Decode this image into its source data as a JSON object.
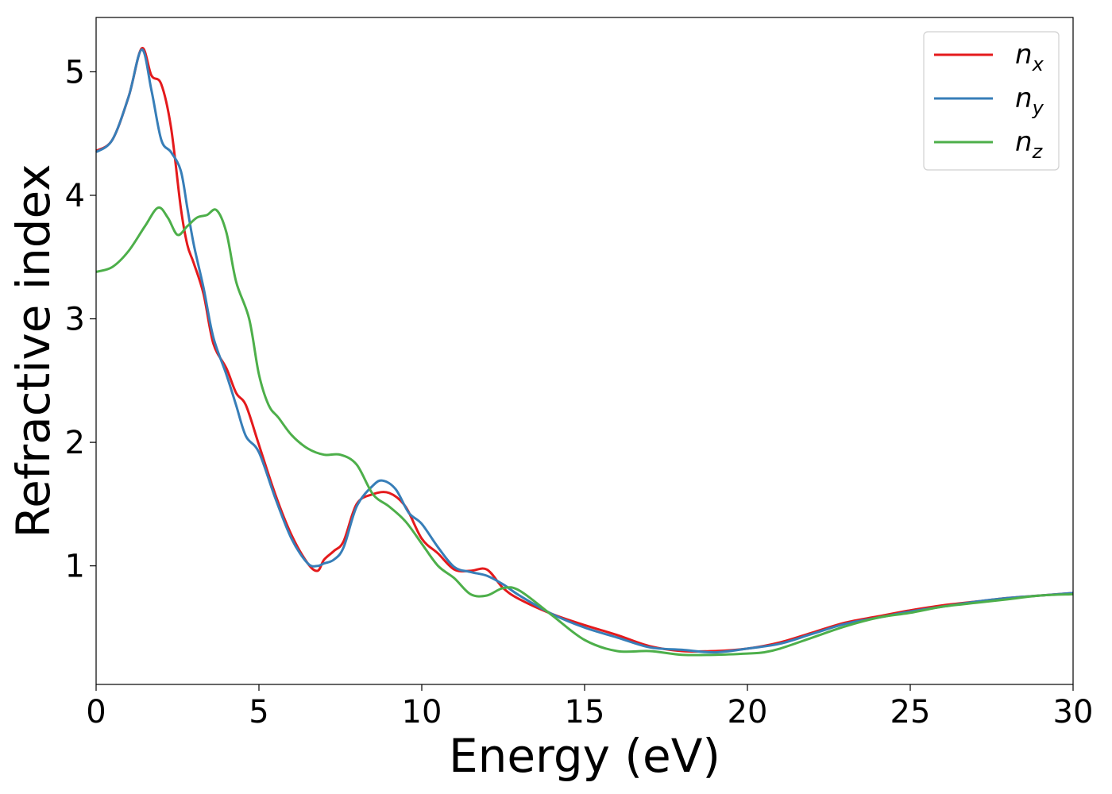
{
  "chart_data": {
    "type": "line",
    "xlabel": "Energy (eV)",
    "ylabel": "Refractive index",
    "xlim": [
      0,
      30
    ],
    "ylim": [
      0.04,
      5.44
    ],
    "xticks": [
      0,
      5,
      10,
      15,
      20,
      25,
      30
    ],
    "xtick_labels": [
      "0",
      "5",
      "10",
      "15",
      "20",
      "25",
      "30"
    ],
    "yticks": [
      1,
      2,
      3,
      4,
      5
    ],
    "ytick_labels": [
      "1",
      "2",
      "3",
      "4",
      "5"
    ],
    "grid": false,
    "legend_position": "top-right",
    "series": [
      {
        "name": "n",
        "subscript": "x",
        "color": "#e41a1c",
        "x": [
          0,
          0.5,
          1.0,
          1.4,
          1.7,
          2.0,
          2.3,
          2.6,
          2.8,
          3.0,
          3.3,
          3.6,
          4.0,
          4.3,
          4.6,
          5.0,
          5.5,
          6.0,
          6.5,
          6.8,
          7.0,
          7.3,
          7.6,
          8.0,
          8.5,
          9.0,
          9.5,
          10.0,
          10.5,
          11.0,
          11.5,
          12.0,
          12.5,
          13.0,
          14.0,
          15.0,
          16.0,
          17.0,
          18.0,
          19.0,
          20.0,
          21.0,
          22.0,
          23.0,
          24.0,
          25.0,
          26.0,
          27.0,
          28.0,
          29.0,
          30.0
        ],
        "y": [
          4.36,
          4.45,
          4.8,
          5.19,
          4.97,
          4.9,
          4.55,
          3.9,
          3.6,
          3.45,
          3.2,
          2.8,
          2.6,
          2.4,
          2.3,
          1.98,
          1.58,
          1.25,
          1.02,
          0.96,
          1.05,
          1.12,
          1.2,
          1.5,
          1.58,
          1.59,
          1.48,
          1.22,
          1.1,
          0.97,
          0.96,
          0.97,
          0.82,
          0.73,
          0.61,
          0.52,
          0.44,
          0.35,
          0.31,
          0.31,
          0.33,
          0.38,
          0.46,
          0.54,
          0.59,
          0.64,
          0.68,
          0.71,
          0.74,
          0.76,
          0.78
        ]
      },
      {
        "name": "n",
        "subscript": "y",
        "color": "#377eb8",
        "x": [
          0,
          0.5,
          1.0,
          1.4,
          1.7,
          2.0,
          2.3,
          2.6,
          2.8,
          3.0,
          3.3,
          3.6,
          4.0,
          4.3,
          4.6,
          5.0,
          5.5,
          6.0,
          6.5,
          6.8,
          7.0,
          7.3,
          7.6,
          8.0,
          8.5,
          8.8,
          9.2,
          9.6,
          10.0,
          10.5,
          11.0,
          11.5,
          12.0,
          12.5,
          13.0,
          14.0,
          15.0,
          16.0,
          17.0,
          18.0,
          19.0,
          20.0,
          21.0,
          22.0,
          23.0,
          24.0,
          25.0,
          26.0,
          27.0,
          28.0,
          29.0,
          30.0
        ],
        "y": [
          4.35,
          4.45,
          4.8,
          5.18,
          4.85,
          4.45,
          4.35,
          4.2,
          3.9,
          3.6,
          3.25,
          2.85,
          2.55,
          2.3,
          2.05,
          1.92,
          1.55,
          1.22,
          1.02,
          1.0,
          1.02,
          1.05,
          1.15,
          1.48,
          1.65,
          1.69,
          1.62,
          1.43,
          1.34,
          1.15,
          0.99,
          0.95,
          0.92,
          0.85,
          0.76,
          0.61,
          0.5,
          0.42,
          0.34,
          0.32,
          0.3,
          0.33,
          0.37,
          0.45,
          0.53,
          0.58,
          0.63,
          0.67,
          0.71,
          0.74,
          0.76,
          0.78
        ]
      },
      {
        "name": "n",
        "subscript": "z",
        "color": "#4daf4a",
        "x": [
          0,
          0.5,
          1.0,
          1.5,
          1.9,
          2.2,
          2.5,
          2.8,
          3.1,
          3.4,
          3.7,
          4.0,
          4.3,
          4.7,
          5.0,
          5.3,
          5.6,
          6.0,
          6.5,
          7.0,
          7.5,
          8.0,
          8.5,
          9.0,
          9.5,
          10.0,
          10.5,
          11.0,
          11.5,
          12.0,
          12.5,
          13.0,
          14.0,
          15.0,
          16.0,
          17.0,
          18.0,
          19.0,
          20.0,
          20.5,
          21.0,
          22.0,
          23.0,
          24.0,
          25.0,
          26.0,
          27.0,
          28.0,
          29.0,
          30.0
        ],
        "y": [
          3.38,
          3.42,
          3.55,
          3.75,
          3.9,
          3.82,
          3.68,
          3.75,
          3.82,
          3.84,
          3.88,
          3.7,
          3.3,
          3.0,
          2.55,
          2.3,
          2.2,
          2.06,
          1.95,
          1.9,
          1.9,
          1.82,
          1.58,
          1.48,
          1.36,
          1.18,
          1.0,
          0.9,
          0.77,
          0.76,
          0.82,
          0.8,
          0.6,
          0.4,
          0.31,
          0.31,
          0.28,
          0.28,
          0.29,
          0.3,
          0.33,
          0.42,
          0.51,
          0.58,
          0.62,
          0.67,
          0.7,
          0.73,
          0.76,
          0.77
        ]
      }
    ]
  }
}
